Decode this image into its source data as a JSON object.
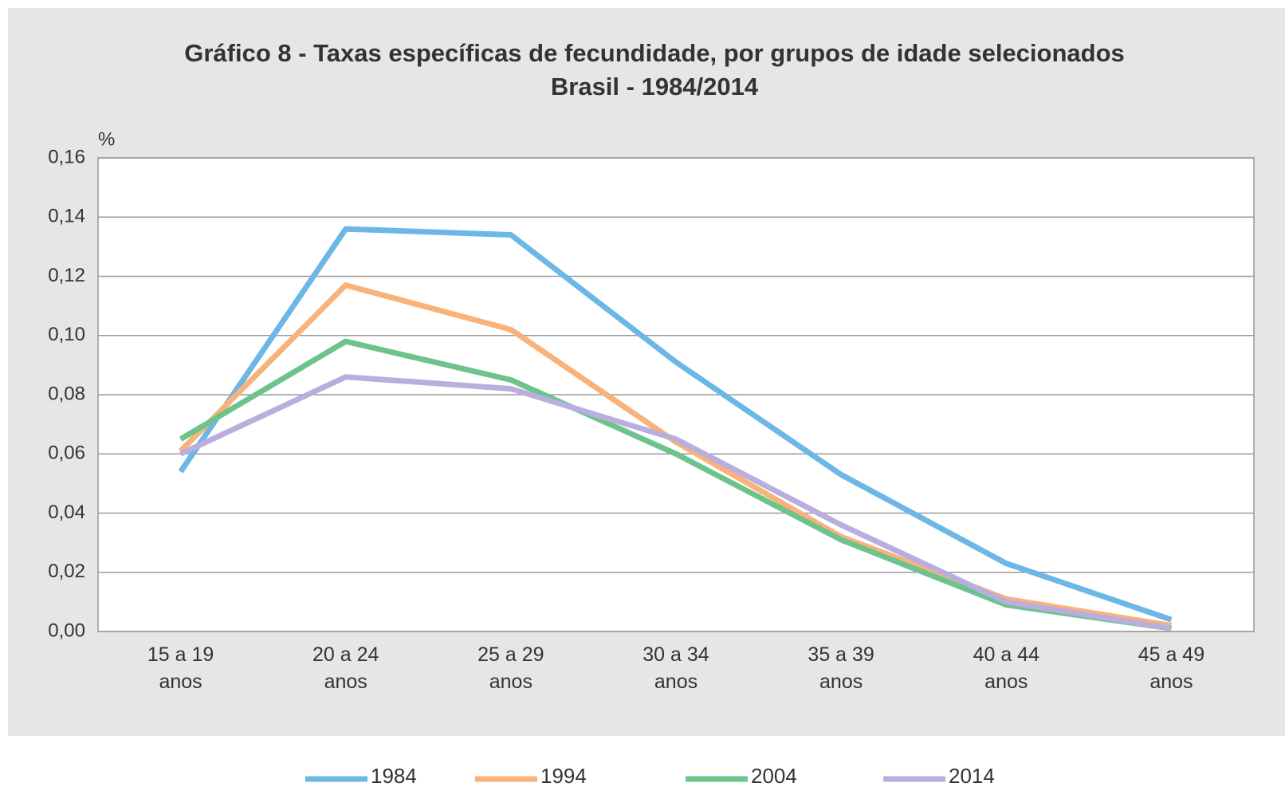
{
  "chart_data": {
    "type": "line",
    "title": "Gráfico 8 - Taxas específicas de fecundidade, por grupos de idade selecionados",
    "subtitle": "Brasil - 1984/2014",
    "y_unit": "%",
    "categories": [
      "15 a 19 anos",
      "20 a 24 anos",
      "25 a 29 anos",
      "30 a 34 anos",
      "35 a 39 anos",
      "40 a 44 anos",
      "45 a 49 anos"
    ],
    "series": [
      {
        "name": "1984",
        "color": "#6cb7e6",
        "values": [
          0.054,
          0.136,
          0.134,
          0.091,
          0.053,
          0.023,
          0.004
        ]
      },
      {
        "name": "1994",
        "color": "#f8b27a",
        "values": [
          0.061,
          0.117,
          0.102,
          0.064,
          0.032,
          0.011,
          0.002
        ]
      },
      {
        "name": "2004",
        "color": "#6ec38c",
        "values": [
          0.065,
          0.098,
          0.085,
          0.06,
          0.031,
          0.009,
          0.001
        ]
      },
      {
        "name": "2014",
        "color": "#b9aede",
        "values": [
          0.06,
          0.086,
          0.082,
          0.065,
          0.036,
          0.01,
          0.001
        ]
      }
    ],
    "ylim": [
      0,
      0.16
    ],
    "yticks": [
      {
        "value": 0,
        "label": "0,00"
      },
      {
        "value": 0.02,
        "label": "0,02"
      },
      {
        "value": 0.04,
        "label": "0,04"
      },
      {
        "value": 0.06,
        "label": "0,06"
      },
      {
        "value": 0.08,
        "label": "0,08"
      },
      {
        "value": 0.1,
        "label": "0,10"
      },
      {
        "value": 0.12,
        "label": "0,12"
      },
      {
        "value": 0.14,
        "label": "0,14"
      },
      {
        "value": 0.16,
        "label": "0,16"
      }
    ],
    "grid": true,
    "legend": "bottom"
  }
}
